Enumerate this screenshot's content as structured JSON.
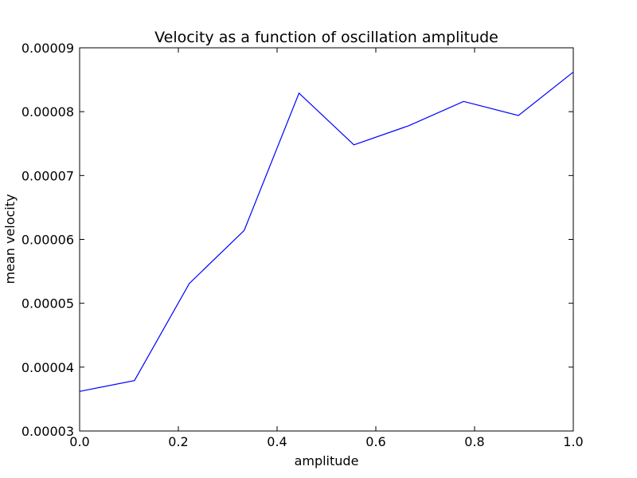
{
  "chart_data": {
    "type": "line",
    "title": "Velocity as a function of oscillation amplitude",
    "xlabel": "amplitude",
    "ylabel": "mean velocity",
    "xlim": [
      0.0,
      1.0
    ],
    "ylim": [
      3e-05,
      9e-05
    ],
    "x_ticks": [
      0.0,
      0.2,
      0.4,
      0.6,
      0.8,
      1.0
    ],
    "x_tick_labels": [
      "0.0",
      "0.2",
      "0.4",
      "0.6",
      "0.8",
      "1.0"
    ],
    "y_ticks": [
      3e-05,
      4e-05,
      5e-05,
      6e-05,
      7e-05,
      8e-05,
      9e-05
    ],
    "y_tick_labels": [
      "0.00003",
      "0.00004",
      "0.00005",
      "0.00006",
      "0.00007",
      "0.00008",
      "0.00009"
    ],
    "grid": false,
    "series": [
      {
        "color": "#0000ff",
        "x": [
          0.0,
          0.1111,
          0.2222,
          0.3333,
          0.4444,
          0.5556,
          0.6667,
          0.7778,
          0.8889,
          1.0
        ],
        "y": [
          3.62e-05,
          3.79e-05,
          5.31e-05,
          6.14e-05,
          8.29e-05,
          7.48e-05,
          7.78e-05,
          8.16e-05,
          7.94e-05,
          8.62e-05
        ]
      }
    ]
  }
}
